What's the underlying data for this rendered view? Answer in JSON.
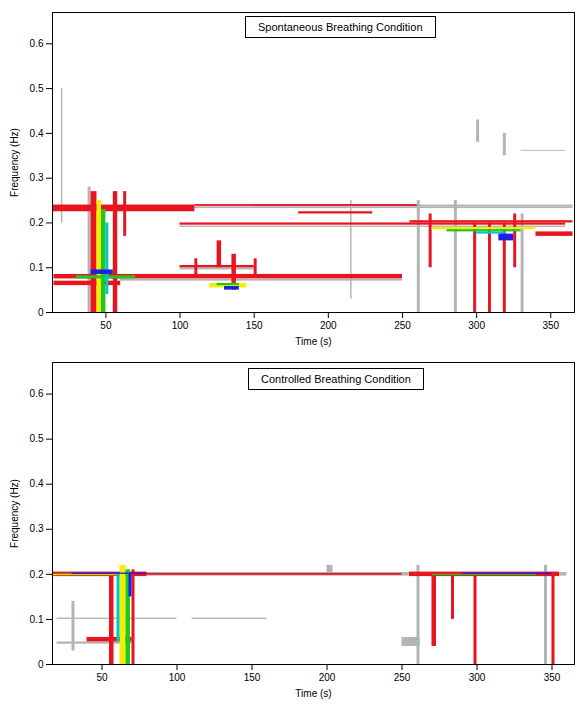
{
  "chart_data": [
    {
      "type": "spectrogram",
      "title": "Spontaneous Breathing Condition",
      "xlabel": "Time (s)",
      "ylabel": "Frequency (Hz)",
      "xlim": [
        14,
        366
      ],
      "ylim": [
        0,
        0.67
      ],
      "xticks": [
        50,
        100,
        150,
        200,
        250,
        300,
        350
      ],
      "yticks": [
        0,
        0.1,
        0.2,
        0.3,
        0.4,
        0.5,
        0.6
      ],
      "colors": [
        "#b4b4b4",
        "#e8141e",
        "#f0f000",
        "#1ec81e",
        "#00c8c8",
        "#1e1ee6"
      ],
      "cells": [
        {
          "t": [
            20,
            21
          ],
          "f": [
            0.2,
            0.5
          ],
          "level": 0
        },
        {
          "t": [
            10,
            365
          ],
          "f": [
            0.232,
            0.236
          ],
          "level": 0
        },
        {
          "t": [
            150,
            365
          ],
          "f": [
            0.236,
            0.24
          ],
          "level": 0
        },
        {
          "t": [
            60,
            250
          ],
          "f": [
            0.07,
            0.074
          ],
          "level": 0
        },
        {
          "t": [
            100,
            360
          ],
          "f": [
            0.19,
            0.193
          ],
          "level": 0
        },
        {
          "t": [
            300,
            302
          ],
          "f": [
            0.38,
            0.43
          ],
          "level": 0
        },
        {
          "t": [
            318,
            320
          ],
          "f": [
            0.35,
            0.4
          ],
          "level": 0
        },
        {
          "t": [
            330,
            360
          ],
          "f": [
            0.36,
            0.362
          ],
          "level": 0
        },
        {
          "t": [
            260,
            262
          ],
          "f": [
            0,
            0.25
          ],
          "level": 0
        },
        {
          "t": [
            285,
            287
          ],
          "f": [
            0,
            0.25
          ],
          "level": 0
        },
        {
          "t": [
            330,
            332
          ],
          "f": [
            0,
            0.22
          ],
          "level": 0
        },
        {
          "t": [
            38,
            40
          ],
          "f": [
            0,
            0.28
          ],
          "level": 0
        },
        {
          "t": [
            100,
            150
          ],
          "f": [
            0.095,
            0.1
          ],
          "level": 0
        },
        {
          "t": [
            215,
            216
          ],
          "f": [
            0.03,
            0.25
          ],
          "level": 0
        },
        {
          "t": [
            10,
            110
          ],
          "f": [
            0.225,
            0.24
          ],
          "level": 1
        },
        {
          "t": [
            110,
            260
          ],
          "f": [
            0.237,
            0.241
          ],
          "level": 1
        },
        {
          "t": [
            15,
            250
          ],
          "f": [
            0.075,
            0.085
          ],
          "level": 1
        },
        {
          "t": [
            15,
            60
          ],
          "f": [
            0.06,
            0.07
          ],
          "level": 1
        },
        {
          "t": [
            100,
            360
          ],
          "f": [
            0.195,
            0.2
          ],
          "level": 1
        },
        {
          "t": [
            255,
            365
          ],
          "f": [
            0.2,
            0.205
          ],
          "level": 1
        },
        {
          "t": [
            340,
            365
          ],
          "f": [
            0.17,
            0.18
          ],
          "level": 1
        },
        {
          "t": [
            40,
            44
          ],
          "f": [
            0,
            0.27
          ],
          "level": 1
        },
        {
          "t": [
            55,
            58
          ],
          "f": [
            0,
            0.27
          ],
          "level": 1
        },
        {
          "t": [
            62,
            64
          ],
          "f": [
            0.17,
            0.27
          ],
          "level": 1
        },
        {
          "t": [
            110,
            112
          ],
          "f": [
            0.08,
            0.12
          ],
          "level": 1
        },
        {
          "t": [
            125,
            128
          ],
          "f": [
            0.1,
            0.16
          ],
          "level": 1
        },
        {
          "t": [
            135,
            138
          ],
          "f": [
            0.05,
            0.13
          ],
          "level": 1
        },
        {
          "t": [
            150,
            152
          ],
          "f": [
            0.08,
            0.12
          ],
          "level": 1
        },
        {
          "t": [
            268,
            270
          ],
          "f": [
            0.1,
            0.22
          ],
          "level": 1
        },
        {
          "t": [
            298,
            300
          ],
          "f": [
            0,
            0.2
          ],
          "level": 1
        },
        {
          "t": [
            308,
            310
          ],
          "f": [
            0,
            0.2
          ],
          "level": 1
        },
        {
          "t": [
            318,
            320
          ],
          "f": [
            0,
            0.2
          ],
          "level": 1
        },
        {
          "t": [
            325,
            327
          ],
          "f": [
            0.1,
            0.22
          ],
          "level": 1
        },
        {
          "t": [
            180,
            230
          ],
          "f": [
            0.22,
            0.225
          ],
          "level": 1
        },
        {
          "t": [
            100,
            150
          ],
          "f": [
            0.1,
            0.105
          ],
          "level": 1
        },
        {
          "t": [
            44,
            47
          ],
          "f": [
            0,
            0.25
          ],
          "level": 2
        },
        {
          "t": [
            270,
            340
          ],
          "f": [
            0.185,
            0.19
          ],
          "level": 2
        },
        {
          "t": [
            120,
            145
          ],
          "f": [
            0.055,
            0.065
          ],
          "level": 2
        },
        {
          "t": [
            47,
            50
          ],
          "f": [
            0,
            0.23
          ],
          "level": 3
        },
        {
          "t": [
            30,
            70
          ],
          "f": [
            0.075,
            0.082
          ],
          "level": 3
        },
        {
          "t": [
            125,
            140
          ],
          "f": [
            0.06,
            0.065
          ],
          "level": 3
        },
        {
          "t": [
            280,
            330
          ],
          "f": [
            0.18,
            0.185
          ],
          "level": 3
        },
        {
          "t": [
            50,
            52
          ],
          "f": [
            0.04,
            0.2
          ],
          "level": 4
        },
        {
          "t": [
            300,
            320
          ],
          "f": [
            0.175,
            0.18
          ],
          "level": 4
        },
        {
          "t": [
            40,
            55
          ],
          "f": [
            0.085,
            0.095
          ],
          "level": 5
        },
        {
          "t": [
            130,
            140
          ],
          "f": [
            0.05,
            0.058
          ],
          "level": 5
        },
        {
          "t": [
            315,
            325
          ],
          "f": [
            0.16,
            0.175
          ],
          "level": 5
        }
      ]
    },
    {
      "type": "spectrogram",
      "title": "Controlled Breathing Condition",
      "xlabel": "Time (s)",
      "ylabel": "Frequency (Hz)",
      "xlim": [
        17,
        365
      ],
      "ylim": [
        0,
        0.67
      ],
      "xticks": [
        50,
        100,
        150,
        200,
        250,
        300,
        350
      ],
      "yticks": [
        0,
        0.1,
        0.2,
        0.3,
        0.4,
        0.5,
        0.6
      ],
      "colors": [
        "#b4b4b4",
        "#e8141e",
        "#f0f000",
        "#1ec81e",
        "#00c8c8",
        "#1e1ee6"
      ],
      "cells": [
        {
          "t": [
            17,
            360
          ],
          "f": [
            0.196,
            0.204
          ],
          "level": 0
        },
        {
          "t": [
            20,
            100
          ],
          "f": [
            0.1,
            0.103
          ],
          "level": 0
        },
        {
          "t": [
            30,
            32
          ],
          "f": [
            0.03,
            0.14
          ],
          "level": 0
        },
        {
          "t": [
            110,
            160
          ],
          "f": [
            0.1,
            0.103
          ],
          "level": 0
        },
        {
          "t": [
            250,
            262
          ],
          "f": [
            0.04,
            0.06
          ],
          "level": 0
        },
        {
          "t": [
            200,
            204
          ],
          "f": [
            0.2,
            0.22
          ],
          "level": 0
        },
        {
          "t": [
            260,
            262
          ],
          "f": [
            0,
            0.22
          ],
          "level": 0
        },
        {
          "t": [
            345,
            347
          ],
          "f": [
            0,
            0.22
          ],
          "level": 0
        },
        {
          "t": [
            20,
            70
          ],
          "f": [
            0.045,
            0.05
          ],
          "level": 0
        },
        {
          "t": [
            17,
            80
          ],
          "f": [
            0.195,
            0.205
          ],
          "level": 1
        },
        {
          "t": [
            255,
            355
          ],
          "f": [
            0.195,
            0.205
          ],
          "level": 1
        },
        {
          "t": [
            80,
            250
          ],
          "f": [
            0.198,
            0.202
          ],
          "level": 1
        },
        {
          "t": [
            40,
            70
          ],
          "f": [
            0.05,
            0.06
          ],
          "level": 1
        },
        {
          "t": [
            55,
            58
          ],
          "f": [
            0,
            0.2
          ],
          "level": 1
        },
        {
          "t": [
            70,
            72
          ],
          "f": [
            0,
            0.21
          ],
          "level": 1
        },
        {
          "t": [
            270,
            273
          ],
          "f": [
            0.04,
            0.2
          ],
          "level": 1
        },
        {
          "t": [
            283,
            285
          ],
          "f": [
            0.1,
            0.2
          ],
          "level": 1
        },
        {
          "t": [
            298,
            300
          ],
          "f": [
            0,
            0.2
          ],
          "level": 1
        },
        {
          "t": [
            350,
            352
          ],
          "f": [
            0,
            0.2
          ],
          "level": 1
        },
        {
          "t": [
            62,
            66
          ],
          "f": [
            0,
            0.22
          ],
          "level": 2
        },
        {
          "t": [
            17,
            70
          ],
          "f": [
            0.197,
            0.2
          ],
          "level": 2
        },
        {
          "t": [
            66,
            69
          ],
          "f": [
            0,
            0.21
          ],
          "level": 3
        },
        {
          "t": [
            20,
            60
          ],
          "f": [
            0.199,
            0.201
          ],
          "level": 3
        },
        {
          "t": [
            270,
            340
          ],
          "f": [
            0.197,
            0.2
          ],
          "level": 3
        },
        {
          "t": [
            60,
            62
          ],
          "f": [
            0.05,
            0.2
          ],
          "level": 4
        },
        {
          "t": [
            30,
            80
          ],
          "f": [
            0.2,
            0.203
          ],
          "level": 5
        },
        {
          "t": [
            290,
            350
          ],
          "f": [
            0.2,
            0.203
          ],
          "level": 5
        },
        {
          "t": [
            68,
            70
          ],
          "f": [
            0.15,
            0.2
          ],
          "level": 5
        }
      ]
    }
  ]
}
